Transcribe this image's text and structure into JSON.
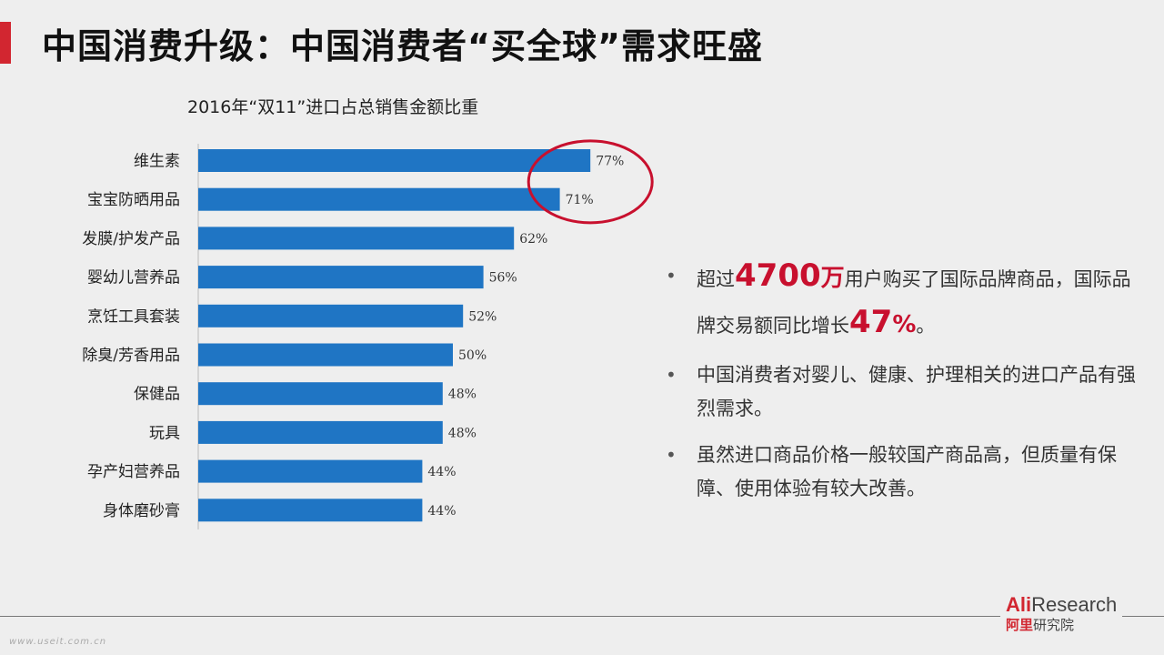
{
  "slide": {
    "title": "中国消费升级：中国消费者“买全球”需求旺盛",
    "accent_color": "#d22630"
  },
  "chart_data": {
    "type": "bar",
    "orientation": "horizontal",
    "title": "2016年“双11”进口占总销售金额比重",
    "categories": [
      "维生素",
      "宝宝防晒用品",
      "发膜/护发产品",
      "婴幼儿营养品",
      "烹饪工具套装",
      "除臭/芳香用品",
      "保健品",
      "玩具",
      "孕产妇营养品",
      "身体磨砂膏"
    ],
    "values": [
      77,
      71,
      62,
      56,
      52,
      50,
      48,
      48,
      44,
      44
    ],
    "value_labels": [
      "77%",
      "71%",
      "62%",
      "56%",
      "52%",
      "50%",
      "48%",
      "48%",
      "44%",
      "44%"
    ],
    "bar_color": "#1f75c4",
    "highlight_color": "#c8102e",
    "highlighted_categories": [
      "维生素",
      "宝宝防晒用品"
    ],
    "grid": false
  },
  "bullets": {
    "b1": {
      "pre": "超过",
      "num1": "4700",
      "unit1": "万",
      "mid": "用户购买了国际品牌商品，国际品牌交易额同比增长",
      "num2": "47",
      "unit2": "%",
      "post": "。"
    },
    "b2": "中国消费者对婴儿、健康、护理相关的进口产品有强烈需求。",
    "b3": "虽然进口商品价格一般较国产商品高，但质量有保障、使用体验有较大改善。"
  },
  "logo": {
    "en_brand": "Ali",
    "en_rest": "Research",
    "cn_brand": "阿里",
    "cn_rest": "研究院"
  },
  "watermark": "www.useit.com.cn"
}
